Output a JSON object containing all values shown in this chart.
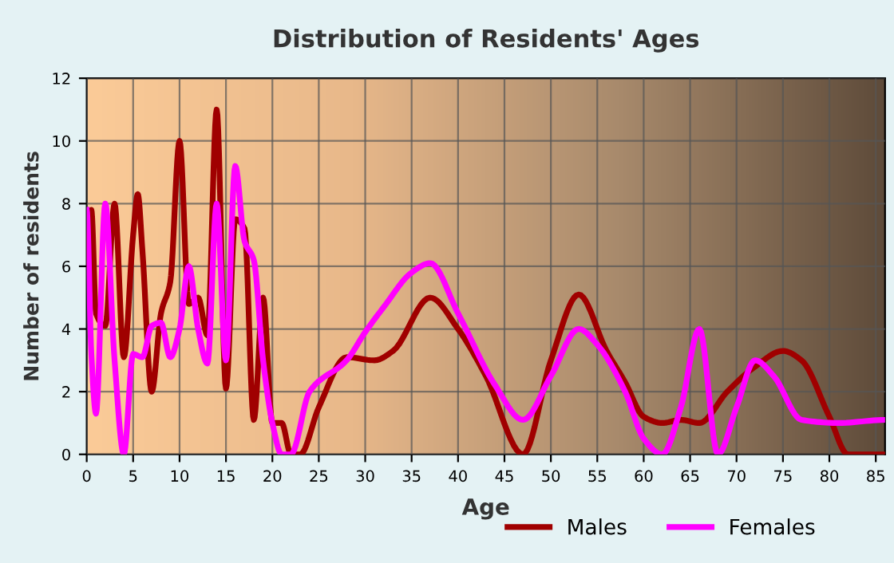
{
  "chart_data": {
    "type": "line",
    "title": "Distribution of Residents' Ages",
    "xlabel": "Age",
    "ylabel": "Number of residents",
    "xlim": [
      0,
      86
    ],
    "xticks": [
      0,
      5,
      10,
      15,
      20,
      25,
      30,
      35,
      40,
      45,
      50,
      55,
      60,
      65,
      70,
      75,
      80,
      85
    ],
    "ylim": [
      0,
      12
    ],
    "yticks": [
      0,
      2,
      4,
      6,
      8,
      10,
      12
    ],
    "grid": true,
    "legend": "bottom",
    "marker": "none",
    "line_style": "solid",
    "series": [
      {
        "name": "Males",
        "color": "#a00000",
        "x": [
          0,
          0.5,
          1,
          2,
          3,
          4,
          5,
          5.5,
          6,
          7,
          8,
          9,
          10,
          11,
          12,
          13,
          14,
          15,
          16,
          17,
          18,
          19,
          20,
          21,
          22,
          23,
          25,
          28,
          31,
          33,
          37,
          40,
          43,
          47,
          50,
          53,
          56,
          58,
          60,
          62,
          64,
          66,
          69,
          72,
          75,
          77,
          80,
          82,
          86
        ],
        "values": [
          6,
          7.8,
          4.5,
          4.1,
          8,
          3.1,
          7,
          8.3,
          6.5,
          2,
          4.5,
          5.5,
          10,
          4.8,
          5,
          3.8,
          11,
          2.1,
          7.5,
          7.2,
          1.1,
          5,
          1,
          1,
          0,
          0,
          1.5,
          3.1,
          3,
          3.3,
          5,
          4,
          2.5,
          0,
          3,
          5.1,
          3.3,
          2.3,
          1.2,
          1,
          1.1,
          1,
          2,
          2.8,
          3.3,
          3,
          1.2,
          0,
          0
        ]
      },
      {
        "name": "Females",
        "color": "#ff00ff",
        "x": [
          0,
          0.5,
          1,
          2,
          3,
          4,
          5,
          6,
          7,
          8,
          9,
          10,
          11,
          12,
          13,
          14,
          15,
          16,
          17,
          18,
          19,
          20,
          21,
          22,
          24,
          28,
          30,
          32,
          35,
          37,
          40,
          44,
          47,
          50,
          53,
          55,
          58,
          60,
          62,
          64,
          66,
          68,
          70,
          72,
          74,
          77,
          81,
          86
        ],
        "values": [
          7.8,
          3.2,
          1.3,
          8,
          3,
          0,
          3.2,
          3.1,
          4.1,
          4.2,
          3.1,
          4,
          6,
          4,
          2.9,
          8,
          3,
          9.2,
          6.8,
          6.2,
          3,
          1,
          0,
          0,
          2,
          3,
          3.9,
          4.7,
          5.8,
          6.1,
          4.5,
          2.2,
          1.1,
          2.5,
          4,
          3.5,
          2,
          0.5,
          0,
          1.5,
          4,
          0,
          1.5,
          3,
          2.5,
          1.1,
          1,
          1.1
        ]
      }
    ]
  }
}
